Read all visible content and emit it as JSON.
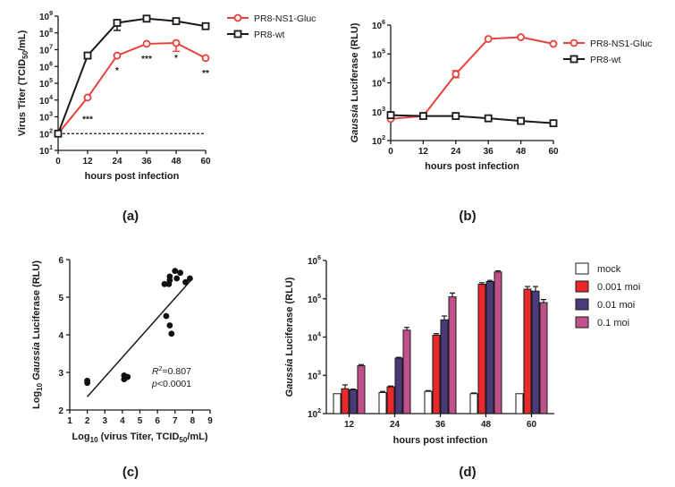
{
  "chart_data": [
    {
      "panel": "(a)",
      "type": "line",
      "yscale": "log",
      "ylabel": "Virus Titer (TCID50/mL)",
      "ylabel_parts": [
        "Virus Titer (TCID",
        "50",
        "/mL)"
      ],
      "xlabel": "hours post infection",
      "x_ticks": [
        0,
        12,
        24,
        36,
        48,
        60
      ],
      "ylim_exp": [
        1,
        9
      ],
      "y_tick_exps": [
        1,
        2,
        3,
        4,
        5,
        6,
        7,
        8,
        9
      ],
      "detection_limit_exp": 2,
      "x": [
        0,
        12,
        24,
        36,
        48,
        60
      ],
      "series": [
        {
          "name": "PR8-NS1-Gluc",
          "color": "#e8413c",
          "marker": "circle",
          "log10_values": [
            2.0,
            4.15,
            6.65,
            7.35,
            7.4,
            6.5
          ],
          "log10_err": [
            0,
            0,
            0,
            0,
            0.5,
            0
          ]
        },
        {
          "name": "PR8-wt",
          "color": "#1a1a1a",
          "marker": "square",
          "log10_values": [
            2.0,
            6.65,
            8.6,
            8.85,
            8.7,
            8.4
          ],
          "log10_err": [
            0,
            0,
            0.45,
            0,
            0,
            0
          ]
        }
      ],
      "annotations": [
        {
          "x": 12,
          "text": "***"
        },
        {
          "x": 24,
          "text": "*"
        },
        {
          "x": 36,
          "text": "***"
        },
        {
          "x": 48,
          "text": "*"
        },
        {
          "x": 60,
          "text": "**"
        }
      ]
    },
    {
      "panel": "(b)",
      "type": "line",
      "yscale": "log",
      "ylabel": "Gaussia Luciferase (RLU)",
      "ylabel_italic": "Gaussia",
      "ylabel_rest": " Luciferase (RLU)",
      "xlabel": "hours post infection",
      "x_ticks": [
        0,
        12,
        24,
        36,
        48,
        60
      ],
      "ylim_exp": [
        2,
        6
      ],
      "y_tick_exps": [
        2,
        3,
        4,
        5,
        6
      ],
      "x": [
        0,
        12,
        24,
        36,
        48,
        60
      ],
      "series": [
        {
          "name": "PR8-NS1-Gluc",
          "color": "#e8413c",
          "marker": "circle",
          "log10_values": [
            2.75,
            2.85,
            4.3,
            5.52,
            5.58,
            5.35
          ],
          "log10_err": [
            0,
            0,
            0.12,
            0,
            0,
            0
          ]
        },
        {
          "name": "PR8-wt",
          "color": "#1a1a1a",
          "marker": "square",
          "log10_values": [
            2.88,
            2.85,
            2.85,
            2.77,
            2.68,
            2.6
          ],
          "log10_err": [
            0,
            0,
            0,
            0,
            0,
            0
          ]
        }
      ]
    },
    {
      "panel": "(c)",
      "type": "scatter",
      "xlabel": "Log10 (virus Titer, TCID50/mL)",
      "xlabel_parts": [
        "Log",
        "10",
        " (virus Titer, TCID",
        "50",
        "/mL)"
      ],
      "ylabel": "Log10 Gaussia Luciferase (RLU)",
      "ylabel_parts": [
        "Log",
        "10",
        " ",
        "Gaussia",
        " Luciferase (RLU)"
      ],
      "xlim": [
        1,
        9
      ],
      "ylim": [
        2,
        6
      ],
      "x_ticks": [
        1,
        2,
        3,
        4,
        5,
        6,
        7,
        8,
        9
      ],
      "y_ticks": [
        2,
        3,
        4,
        5,
        6
      ],
      "points": [
        {
          "x": 2.0,
          "y": 2.72
        },
        {
          "x": 2.0,
          "y": 2.78
        },
        {
          "x": 4.1,
          "y": 2.82
        },
        {
          "x": 4.1,
          "y": 2.92
        },
        {
          "x": 4.3,
          "y": 2.88
        },
        {
          "x": 6.4,
          "y": 5.35
        },
        {
          "x": 6.65,
          "y": 5.35
        },
        {
          "x": 6.7,
          "y": 5.45
        },
        {
          "x": 6.7,
          "y": 5.55
        },
        {
          "x": 7.0,
          "y": 5.7
        },
        {
          "x": 7.3,
          "y": 5.65
        },
        {
          "x": 7.1,
          "y": 5.5
        },
        {
          "x": 7.6,
          "y": 5.4
        },
        {
          "x": 7.85,
          "y": 5.5
        },
        {
          "x": 6.5,
          "y": 4.5
        },
        {
          "x": 6.7,
          "y": 4.25
        },
        {
          "x": 6.8,
          "y": 4.03
        }
      ],
      "fit_line": {
        "x": [
          2.0,
          8.0
        ],
        "y": [
          2.35,
          5.5
        ]
      },
      "r_squared_label": "R",
      "r_squared_sup": "2",
      "r_squared_value": "=0.807",
      "p_label": "p",
      "p_value": "<0.0001"
    },
    {
      "panel": "(d)",
      "type": "bar",
      "yscale": "log",
      "ylabel": "Gaussia Luciferase (RLU)",
      "ylabel_italic": "Gaussia",
      "ylabel_rest": " Luciferase (RLU)",
      "xlabel": "hours post infection",
      "categories": [
        "12",
        "24",
        "36",
        "48",
        "60"
      ],
      "ylim_exp": [
        2,
        6
      ],
      "y_tick_exps": [
        2,
        3,
        4,
        5,
        6
      ],
      "series": [
        {
          "name": "mock",
          "color": "#ffffff",
          "log10_values": [
            2.52,
            2.55,
            2.58,
            2.52,
            2.52
          ],
          "log10_err": [
            0,
            0.03,
            0.02,
            0.02,
            0
          ]
        },
        {
          "name": "0.001 moi",
          "color": "#e8282a",
          "log10_values": [
            2.65,
            2.7,
            4.05,
            5.38,
            5.25
          ],
          "log10_err": [
            0.1,
            0.02,
            0.04,
            0.04,
            0.07
          ]
        },
        {
          "name": "0.01 moi",
          "color": "#4b3a7a",
          "log10_values": [
            2.62,
            3.45,
            4.45,
            5.45,
            5.2
          ],
          "log10_err": [
            0.02,
            0.02,
            0.1,
            0.03,
            0.12
          ]
        },
        {
          "name": "0.1 moi",
          "color": "#c0508a",
          "log10_values": [
            3.25,
            4.18,
            5.05,
            5.7,
            4.9
          ],
          "log10_err": [
            0.03,
            0.07,
            0.1,
            0.03,
            0.08
          ]
        }
      ]
    }
  ],
  "panel_labels": [
    "(a)",
    "(b)",
    "(c)",
    "(d)"
  ]
}
